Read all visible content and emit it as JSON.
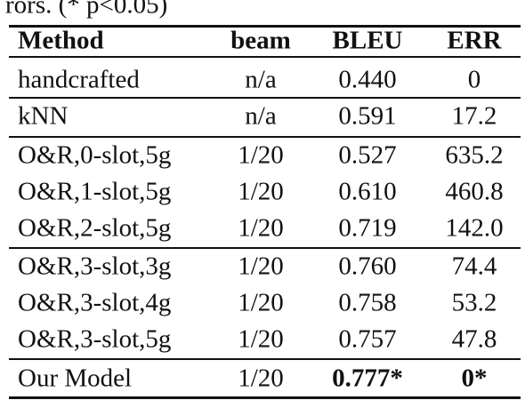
{
  "caption_fragment": "rors. (* p<0.05)",
  "table": {
    "header": [
      "Method",
      "beam",
      "BLEU",
      "ERR"
    ],
    "rows": [
      [
        "handcrafted",
        "n/a",
        "0.440",
        "0"
      ],
      [
        "kNN",
        "n/a",
        "0.591",
        "17.2"
      ],
      [
        "O&R,0-slot,5g",
        "1/20",
        "0.527",
        "635.2"
      ],
      [
        "O&R,1-slot,5g",
        "1/20",
        "0.610",
        "460.8"
      ],
      [
        "O&R,2-slot,5g",
        "1/20",
        "0.719",
        "142.0"
      ],
      [
        "O&R,3-slot,3g",
        "1/20",
        "0.760",
        "74.4"
      ],
      [
        "O&R,3-slot,4g",
        "1/20",
        "0.758",
        "53.2"
      ],
      [
        "O&R,3-slot,5g",
        "1/20",
        "0.757",
        "47.8"
      ],
      [
        "Our Model",
        "1/20",
        "0.777*",
        "0*"
      ]
    ]
  }
}
